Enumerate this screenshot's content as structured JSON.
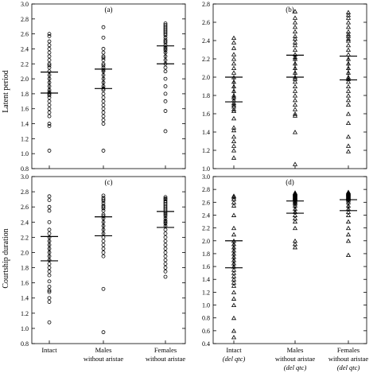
{
  "y_axis_titles": {
    "top": "Latent period",
    "bottom": "Courtship duration"
  },
  "chart_data": [
    {
      "type": "scatter",
      "panel": "(a)",
      "marker": "circle",
      "categories": [
        [
          "Intact"
        ],
        [
          "Males",
          "without aristae"
        ],
        [
          "Females",
          "without aristae"
        ]
      ],
      "ylim": [
        0.8,
        3.0
      ],
      "yticks": [
        "0.8",
        "1.0",
        "1.2",
        "1.4",
        "1.6",
        "1.8",
        "2.0",
        "2.2",
        "2.4",
        "2.6",
        "2.8",
        "3.0"
      ],
      "series": [
        {
          "points": [
            2.6,
            2.57,
            2.5,
            2.45,
            2.4,
            2.35,
            2.3,
            2.25,
            2.2,
            2.18,
            2.15,
            2.1,
            2.05,
            2.0,
            1.95,
            1.9,
            1.85,
            1.82,
            1.8,
            1.78,
            1.75,
            1.7,
            1.65,
            1.6,
            1.55,
            1.5,
            1.4,
            1.37,
            1.04
          ],
          "mean": 2.09,
          "q1": 1.81
        },
        {
          "points": [
            2.69,
            2.55,
            2.4,
            2.35,
            2.3,
            2.28,
            2.25,
            2.2,
            2.18,
            2.15,
            2.12,
            2.1,
            2.05,
            2.0,
            1.95,
            1.9,
            1.87,
            1.85,
            1.8,
            1.75,
            1.7,
            1.65,
            1.6,
            1.55,
            1.5,
            1.45,
            1.4,
            1.04
          ],
          "mean": 2.13,
          "q1": 1.87
        },
        {
          "points": [
            2.74,
            2.72,
            2.7,
            2.68,
            2.66,
            2.64,
            2.62,
            2.6,
            2.58,
            2.55,
            2.52,
            2.5,
            2.48,
            2.45,
            2.42,
            2.4,
            2.38,
            2.35,
            2.3,
            2.25,
            2.2,
            2.15,
            2.1,
            2.0,
            1.9,
            1.8,
            1.7,
            1.57,
            1.3
          ],
          "mean": 2.44,
          "q1": 2.2
        }
      ]
    },
    {
      "type": "scatter",
      "panel": "(b)",
      "marker": "triangle",
      "categories": [
        [
          "Intact"
        ],
        [
          "Males",
          "without aristae"
        ],
        [
          "Females",
          "without aristae"
        ]
      ],
      "ylim": [
        1.0,
        2.8
      ],
      "yticks": [
        "1.0",
        "1.2",
        "1.4",
        "1.6",
        "1.8",
        "2.0",
        "2.2",
        "2.4",
        "2.6",
        "2.8"
      ],
      "series": [
        {
          "points": [
            2.43,
            2.38,
            2.32,
            2.25,
            2.2,
            2.15,
            2.1,
            2.05,
            2.0,
            1.95,
            1.9,
            1.85,
            1.8,
            1.78,
            1.75,
            1.72,
            1.7,
            1.68,
            1.65,
            1.63,
            1.55,
            1.45,
            1.42,
            1.35,
            1.3,
            1.25,
            1.2,
            1.12
          ],
          "mean": 2.0,
          "q1": 1.73
        },
        {
          "points": [
            2.72,
            2.65,
            2.6,
            2.55,
            2.5,
            2.45,
            2.42,
            2.38,
            2.35,
            2.3,
            2.25,
            2.22,
            2.2,
            2.15,
            2.1,
            2.05,
            2.0,
            1.98,
            1.95,
            1.9,
            1.85,
            1.8,
            1.75,
            1.7,
            1.65,
            1.6,
            1.58,
            1.4,
            1.05
          ],
          "mean": 2.24,
          "q1": 2.0
        },
        {
          "points": [
            2.71,
            2.68,
            2.65,
            2.6,
            2.55,
            2.5,
            2.47,
            2.45,
            2.42,
            2.4,
            2.35,
            2.3,
            2.25,
            2.2,
            2.15,
            2.1,
            2.05,
            2.0,
            1.98,
            1.95,
            1.9,
            1.85,
            1.8,
            1.75,
            1.7,
            1.6,
            1.5,
            1.35,
            1.25,
            1.19
          ],
          "mean": 2.23,
          "q1": 1.97
        }
      ]
    },
    {
      "type": "scatter",
      "panel": "(c)",
      "marker": "circle",
      "categories": [
        [
          "Intact"
        ],
        [
          "Males",
          "without aristae"
        ],
        [
          "Females",
          "without aristae"
        ]
      ],
      "ylim": [
        0.8,
        3.0
      ],
      "yticks": [
        "0.8",
        "1.0",
        "1.2",
        "1.4",
        "1.6",
        "1.8",
        "2.0",
        "2.2",
        "2.4",
        "2.6",
        "2.8",
        "3.0"
      ],
      "series": [
        {
          "points": [
            2.74,
            2.69,
            2.6,
            2.55,
            2.4,
            2.3,
            2.25,
            2.2,
            2.15,
            2.1,
            2.05,
            2.0,
            1.95,
            1.9,
            1.85,
            1.8,
            1.75,
            1.7,
            1.62,
            1.55,
            1.5,
            1.48,
            1.4,
            1.35,
            1.08
          ],
          "mean": 2.21,
          "q1": 1.89
        },
        {
          "points": [
            2.75,
            2.72,
            2.7,
            2.68,
            2.65,
            2.62,
            2.6,
            2.58,
            2.55,
            2.5,
            2.48,
            2.45,
            2.4,
            2.35,
            2.3,
            2.25,
            2.2,
            2.15,
            2.1,
            2.05,
            2.0,
            1.95,
            1.52,
            0.95
          ],
          "mean": 2.47,
          "q1": 2.22
        },
        {
          "points": [
            2.73,
            2.71,
            2.7,
            2.68,
            2.66,
            2.64,
            2.62,
            2.6,
            2.58,
            2.56,
            2.54,
            2.52,
            2.5,
            2.48,
            2.45,
            2.42,
            2.4,
            2.38,
            2.35,
            2.3,
            2.25,
            2.2,
            2.15,
            2.1,
            2.05,
            2.0,
            1.95,
            1.9,
            1.85,
            1.8,
            1.75,
            1.68
          ],
          "mean": 2.54,
          "q1": 2.33
        }
      ]
    },
    {
      "type": "scatter",
      "panel": "(d)",
      "marker": "triangle",
      "categories": [
        [
          "Intact",
          "(del qtc)"
        ],
        [
          "Males",
          "without aristae",
          "(del qtc)"
        ],
        [
          "Females",
          "without aristae",
          "(del qtc)"
        ]
      ],
      "ylim": [
        0.4,
        3.0
      ],
      "yticks": [
        "0.4",
        "0.6",
        "0.8",
        "1.0",
        "1.2",
        "1.4",
        "1.6",
        "1.8",
        "2.0",
        "2.2",
        "2.4",
        "2.6",
        "2.8",
        "3.0"
      ],
      "series": [
        {
          "points": [
            2.7,
            2.68,
            2.65,
            2.6,
            2.55,
            2.4,
            2.2,
            2.1,
            2.0,
            1.95,
            1.9,
            1.85,
            1.8,
            1.75,
            1.7,
            1.65,
            1.6,
            1.55,
            1.5,
            1.45,
            1.4,
            1.35,
            1.3,
            1.2,
            1.1,
            1.0,
            0.8,
            0.6,
            0.5
          ],
          "mean": 2.0,
          "q1": 1.58
        },
        {
          "points": [
            2.75,
            2.74,
            2.73,
            2.72,
            2.71,
            2.7,
            2.69,
            2.68,
            2.67,
            2.66,
            2.65,
            2.64,
            2.62,
            2.6,
            2.58,
            2.55,
            2.5,
            2.45,
            2.4,
            2.35,
            2.3,
            2.2,
            2.0,
            1.95,
            1.9
          ],
          "mean": 2.62,
          "q1": 2.43
        },
        {
          "points": [
            2.76,
            2.75,
            2.74,
            2.73,
            2.72,
            2.71,
            2.7,
            2.69,
            2.68,
            2.67,
            2.66,
            2.65,
            2.63,
            2.6,
            2.55,
            2.5,
            2.45,
            2.4,
            2.3,
            2.2,
            2.1,
            2.0,
            1.78
          ],
          "mean": 2.64,
          "q1": 2.47
        }
      ]
    }
  ]
}
